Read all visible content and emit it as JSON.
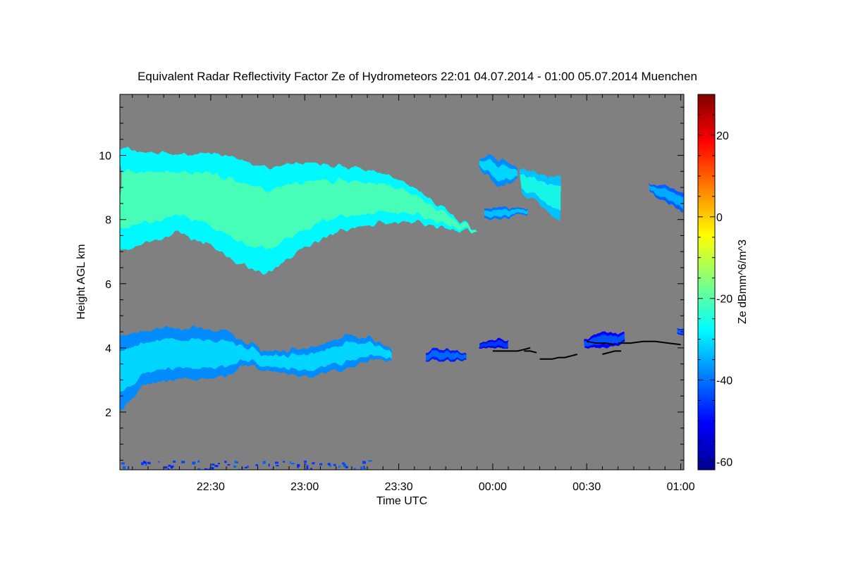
{
  "chart_data": {
    "type": "heatmap",
    "title": "Equivalent Radar Reflectivity Factor Ze of Hydrometeors   22:01 04.07.2014 - 01:00 05.07.2014 Muenchen",
    "xlabel": "Time UTC",
    "ylabel": "Height AGL km",
    "colorbar_label": "Ze dBmm^6/m^3",
    "x_unit": "minutes since 22:00 UTC",
    "xlim": [
      1,
      181
    ],
    "ylim": [
      0.2,
      11.9
    ],
    "x_ticks": [
      {
        "value": 30,
        "label": "22:30"
      },
      {
        "value": 60,
        "label": "23:00"
      },
      {
        "value": 90,
        "label": "23:30"
      },
      {
        "value": 120,
        "label": "00:00"
      },
      {
        "value": 150,
        "label": "00:30"
      },
      {
        "value": 180,
        "label": "01:00"
      }
    ],
    "y_ticks": [
      {
        "value": 2,
        "label": "2"
      },
      {
        "value": 4,
        "label": "4"
      },
      {
        "value": 6,
        "label": "6"
      },
      {
        "value": 8,
        "label": "8"
      },
      {
        "value": 10,
        "label": "10"
      }
    ],
    "colorbar_range": [
      -62,
      30
    ],
    "colorbar_ticks": [
      {
        "value": -60,
        "label": "-60"
      },
      {
        "value": -40,
        "label": "-40"
      },
      {
        "value": -20,
        "label": "-20"
      },
      {
        "value": 0,
        "label": "0"
      },
      {
        "value": 20,
        "label": "20"
      }
    ],
    "background_color": "#808080",
    "colormap_stops": [
      "#00008f",
      "#0000ff",
      "#0080ff",
      "#00ffff",
      "#80ff80",
      "#ffff00",
      "#ff8000",
      "#ff0000",
      "#800000"
    ],
    "echo_regions": [
      {
        "name": "upper-cloud-layer",
        "x": [
          1,
          115
        ],
        "bottom_km": [
          7.0,
          7.3,
          7.6,
          7.2,
          6.6,
          6.3,
          7.0,
          7.5,
          7.8,
          7.9,
          7.9,
          7.7,
          7.6
        ],
        "top_km": [
          10.2,
          10.1,
          10.0,
          10.1,
          9.9,
          9.6,
          9.8,
          9.7,
          9.6,
          9.4,
          8.9,
          8.3,
          7.6
        ],
        "ze_dbz": -20
      },
      {
        "name": "upper-fragment-a",
        "x": [
          115,
          128
        ],
        "bottom_km": [
          9.7,
          9.2,
          9.0,
          9.3
        ],
        "top_km": [
          9.9,
          10.0,
          9.8,
          9.6
        ],
        "ze_dbz": -30
      },
      {
        "name": "upper-fragment-b",
        "x": [
          118,
          131
        ],
        "bottom_km": [
          8.1,
          8.0,
          8.1,
          8.2
        ],
        "top_km": [
          8.4,
          8.4,
          8.3,
          8.4
        ],
        "ze_dbz": -32
      },
      {
        "name": "upper-fragment-c",
        "x": [
          129,
          142
        ],
        "bottom_km": [
          8.8,
          8.6,
          8.2,
          7.9
        ],
        "top_km": [
          9.6,
          9.5,
          9.3,
          9.4
        ],
        "ze_dbz": -25
      },
      {
        "name": "upper-fragment-d",
        "x": [
          170,
          181
        ],
        "bottom_km": [
          8.9,
          8.6,
          8.2
        ],
        "top_km": [
          9.1,
          9.1,
          8.8
        ],
        "ze_dbz": -34
      },
      {
        "name": "lower-cloud-layer",
        "x": [
          1,
          88
        ],
        "bottom_km": [
          2.0,
          2.8,
          3.0,
          3.0,
          3.0,
          3.1,
          3.5,
          3.3,
          3.2,
          3.1,
          3.2,
          3.4,
          3.6,
          3.6
        ],
        "top_km": [
          4.4,
          4.5,
          4.6,
          4.6,
          4.6,
          4.5,
          4.2,
          3.9,
          3.9,
          4.0,
          4.2,
          4.4,
          4.3,
          3.9
        ],
        "ze_dbz": -30
      },
      {
        "name": "lower-fragment-a",
        "x": [
          99,
          111
        ],
        "bottom_km": [
          3.6,
          3.6,
          3.6
        ],
        "top_km": [
          3.9,
          4.0,
          3.8
        ],
        "ze_dbz": -40
      },
      {
        "name": "lower-fragment-b",
        "x": [
          116,
          125
        ],
        "bottom_km": [
          4.0,
          4.0
        ],
        "top_km": [
          4.2,
          4.3
        ],
        "ze_dbz": -45
      },
      {
        "name": "lower-fragment-c",
        "x": [
          149,
          162
        ],
        "bottom_km": [
          4.0,
          4.0,
          4.1
        ],
        "top_km": [
          4.3,
          4.5,
          4.4
        ],
        "ze_dbz": -42
      },
      {
        "name": "lower-fragment-d",
        "x": [
          179,
          181
        ],
        "bottom_km": [
          4.4,
          4.4
        ],
        "top_km": [
          4.6,
          4.6
        ],
        "ze_dbz": -40
      }
    ],
    "black_trace_segments": [
      {
        "x": [
          120,
          122,
          124,
          126,
          128,
          130,
          132
        ],
        "y_km": [
          3.9,
          3.9,
          3.9,
          3.9,
          3.9,
          3.95,
          4.0
        ]
      },
      {
        "x": [
          130,
          132,
          134
        ],
        "y_km": [
          3.9,
          3.9,
          3.85
        ]
      },
      {
        "x": [
          135,
          137,
          139,
          141,
          143,
          145,
          147
        ],
        "y_km": [
          3.65,
          3.65,
          3.65,
          3.7,
          3.7,
          3.75,
          3.8
        ]
      },
      {
        "x": [
          150,
          153,
          156,
          159
        ],
        "y_km": [
          4.2,
          4.15,
          4.15,
          4.1
        ]
      },
      {
        "x": [
          155,
          157,
          159,
          161
        ],
        "y_km": [
          3.8,
          3.85,
          3.9,
          3.9
        ]
      },
      {
        "x": [
          160,
          164,
          168,
          172,
          176,
          180
        ],
        "y_km": [
          4.15,
          4.15,
          4.2,
          4.2,
          4.15,
          4.1
        ]
      }
    ],
    "near_ground_speckle_km": [
      0.2,
      0.5
    ]
  }
}
